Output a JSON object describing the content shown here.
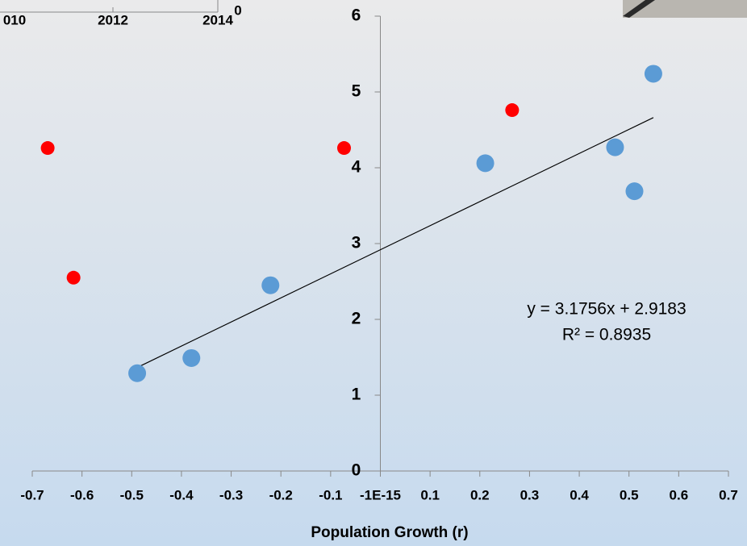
{
  "chart_data": {
    "type": "scatter",
    "x_label": "Population Growth (r)",
    "xlim": [
      -0.7,
      0.7
    ],
    "xticks": [
      -0.7,
      -0.6,
      -0.5,
      -0.4,
      -0.3,
      -0.2,
      -0.1,
      {
        "value": -1e-15,
        "label": "-1E-15"
      },
      0.1,
      0.2,
      0.3,
      0.4,
      0.5,
      0.6,
      0.7
    ],
    "ylim": [
      0,
      6
    ],
    "yticks": [
      0,
      1,
      2,
      3,
      4,
      5,
      6
    ],
    "series": [
      {
        "color": "#5b9bd5",
        "x": [
          -0.489,
          -0.38,
          -0.221,
          0.211,
          0.472,
          0.511,
          0.549
        ],
        "values": [
          1.29,
          1.49,
          2.45,
          4.06,
          4.27,
          3.69,
          5.24
        ]
      },
      {
        "color": "#ff0000",
        "x": [
          -0.669,
          -0.617,
          -0.073,
          0.265
        ],
        "values": [
          4.26,
          2.55,
          4.26,
          4.76
        ]
      }
    ],
    "trendline": {
      "slope": 3.1756,
      "intercept": 2.9183,
      "equation": "y = 3.1756x + 2.9183",
      "r2": "R² = 0.8935"
    }
  },
  "inset": {
    "xtick_labels": [
      "010",
      "2012",
      "2014"
    ],
    "ytick_label": "0"
  }
}
